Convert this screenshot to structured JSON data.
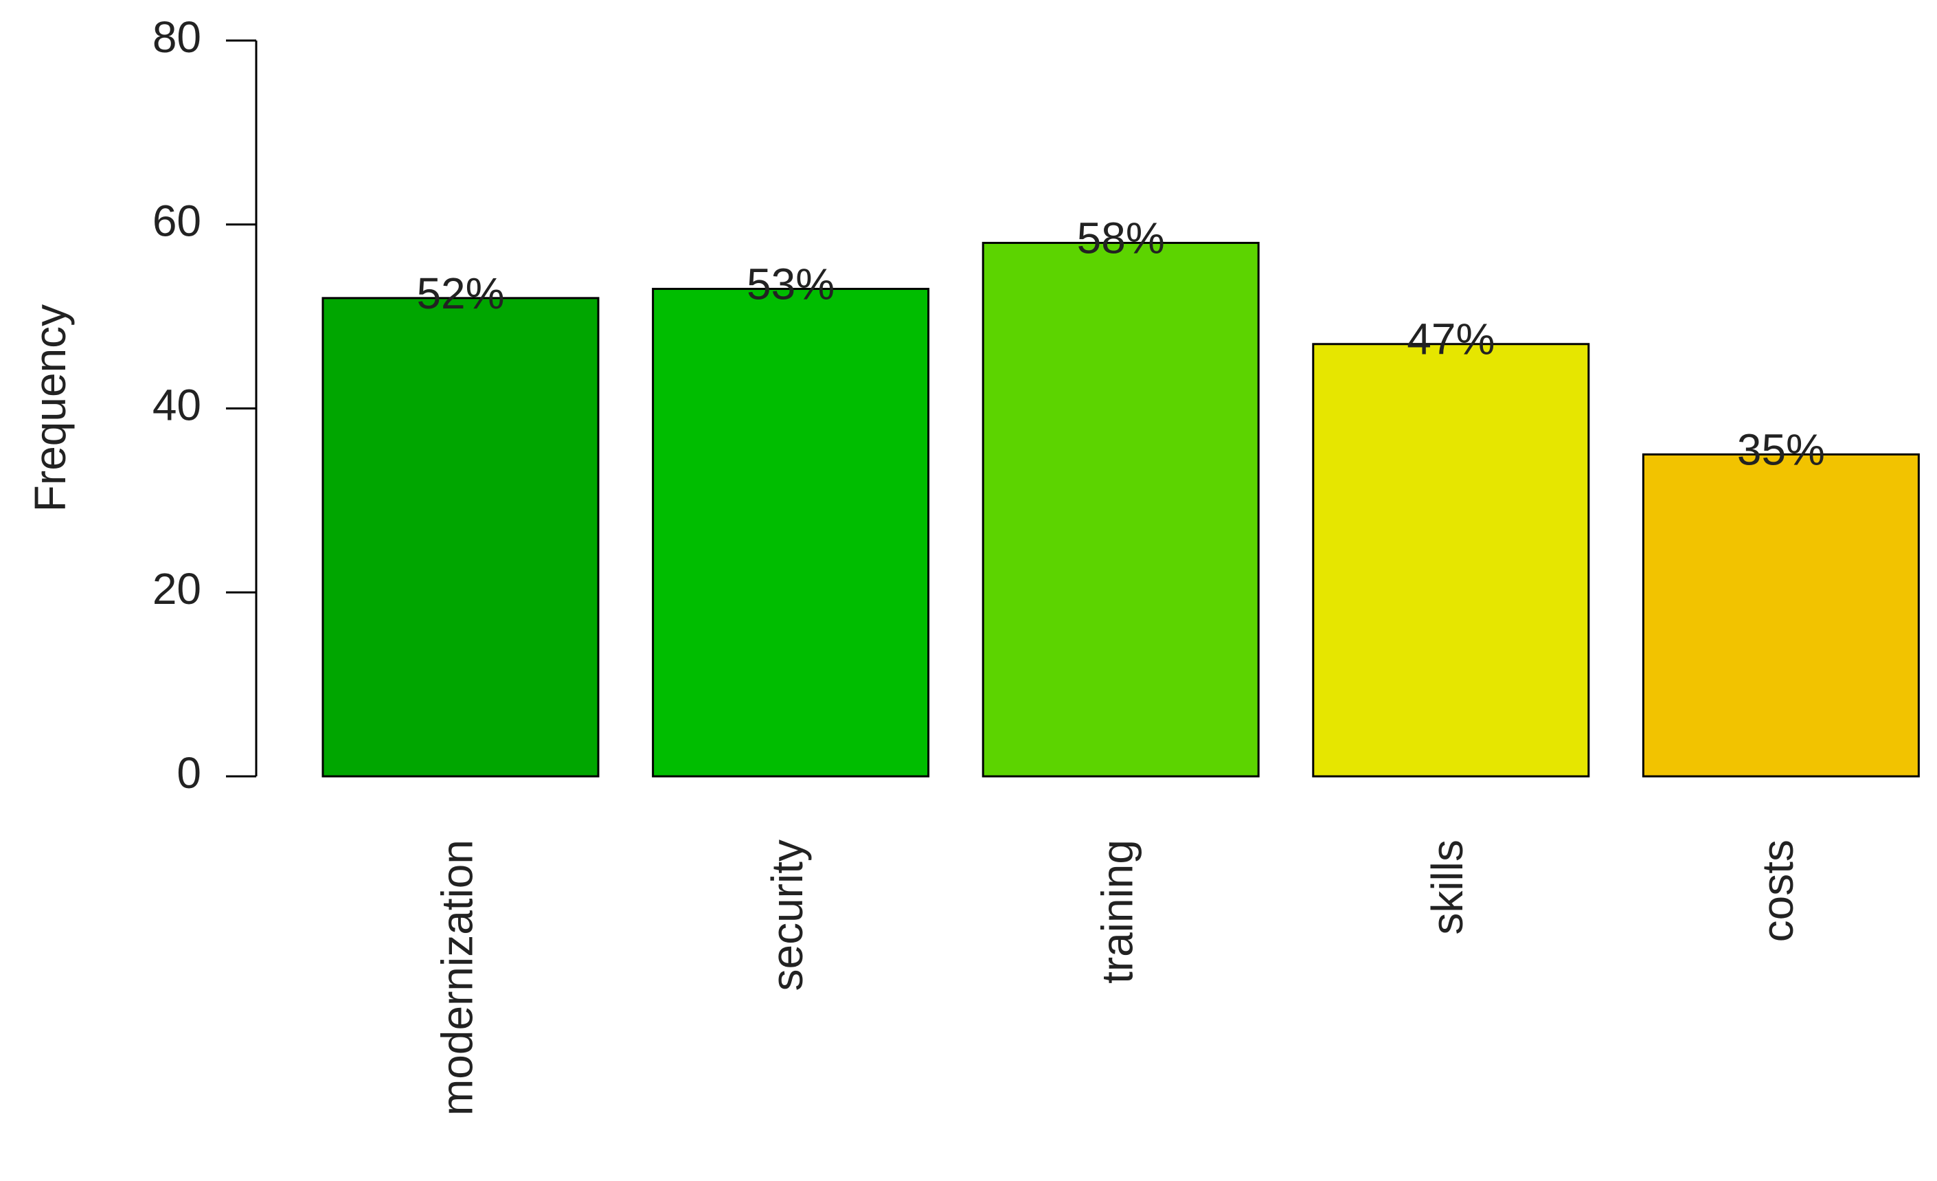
{
  "chart_data": {
    "type": "bar",
    "y_label": "Frequency",
    "categories": [
      "modernization",
      "security",
      "training",
      "skills",
      "costs"
    ],
    "values": [
      52,
      53,
      58,
      47,
      35
    ],
    "value_labels": [
      "52%",
      "53%",
      "58%",
      "47%",
      "35%"
    ],
    "colors": [
      "#00a600",
      "#00bd00",
      "#5cd400",
      "#e6e600",
      "#f2c300"
    ],
    "ylim": [
      0,
      80
    ],
    "yticks": [
      0,
      20,
      40,
      60,
      80
    ]
  }
}
